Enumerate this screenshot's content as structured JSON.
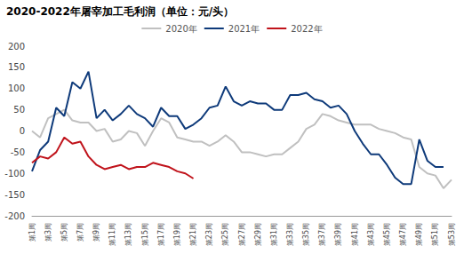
{
  "chart_data": {
    "type": "line",
    "title": "2020-2022年屠宰加工毛利润（单位：元/头）",
    "categories": [
      "第1周",
      null,
      "第3周",
      null,
      "第5周",
      null,
      "第7周",
      null,
      "第9周",
      null,
      "第11周",
      null,
      "第13周",
      null,
      "第15周",
      null,
      "第17周",
      null,
      "第19周",
      null,
      "第21周",
      null,
      "第23周",
      null,
      "第25周",
      null,
      "第27周",
      null,
      "第29周",
      null,
      "第31周",
      null,
      "第33周",
      null,
      "第35周",
      null,
      "第37周",
      null,
      "第39周",
      null,
      "第41周",
      null,
      "第43周",
      null,
      "第45周",
      null,
      "第47周",
      null,
      "第49周",
      null,
      "第51周",
      null,
      "第53周"
    ],
    "series": [
      {
        "name": "2020年",
        "color": "#c0c0c0",
        "values": [
          0,
          -15,
          30,
          40,
          50,
          25,
          20,
          20,
          0,
          5,
          -25,
          -20,
          0,
          -5,
          -35,
          0,
          30,
          20,
          -15,
          -20,
          -25,
          -25,
          -35,
          -25,
          -10,
          -25,
          -50,
          -50,
          -55,
          -60,
          -55,
          -55,
          -40,
          -25,
          5,
          15,
          40,
          35,
          25,
          20,
          15,
          15,
          15,
          5,
          0,
          -5,
          -15,
          -20,
          -85,
          -100,
          -105,
          -135,
          -115
        ]
      },
      {
        "name": "2021年",
        "color": "#0e3a7a",
        "values": [
          -95,
          -45,
          -25,
          55,
          35,
          115,
          100,
          140,
          30,
          50,
          25,
          40,
          60,
          40,
          30,
          10,
          55,
          35,
          35,
          5,
          15,
          30,
          55,
          60,
          105,
          70,
          60,
          70,
          65,
          65,
          50,
          50,
          85,
          85,
          90,
          75,
          70,
          55,
          60,
          40,
          0,
          -30,
          -55,
          -55,
          -80,
          -110,
          -125,
          -125,
          -20,
          -70,
          -85,
          -85,
          null
        ]
      },
      {
        "name": "2022年",
        "color": "#c0131b",
        "values": [
          -75,
          -60,
          -65,
          -50,
          -15,
          -30,
          -25,
          -60,
          -80,
          -90,
          -85,
          -80,
          -90,
          -85,
          -85,
          -75,
          -80,
          -85,
          -95,
          -100,
          -112,
          null,
          null,
          null,
          null,
          null,
          null,
          null,
          null,
          null,
          null,
          null,
          null,
          null,
          null,
          null,
          null,
          null,
          null,
          null,
          null,
          null,
          null,
          null,
          null,
          null,
          null,
          null,
          null,
          null,
          null,
          null,
          null
        ]
      }
    ],
    "ylim": [
      -200,
      200
    ],
    "yticks": [
      -200,
      -150,
      -100,
      -50,
      0,
      50,
      100,
      150,
      200
    ],
    "grid": false,
    "legend": "top"
  }
}
